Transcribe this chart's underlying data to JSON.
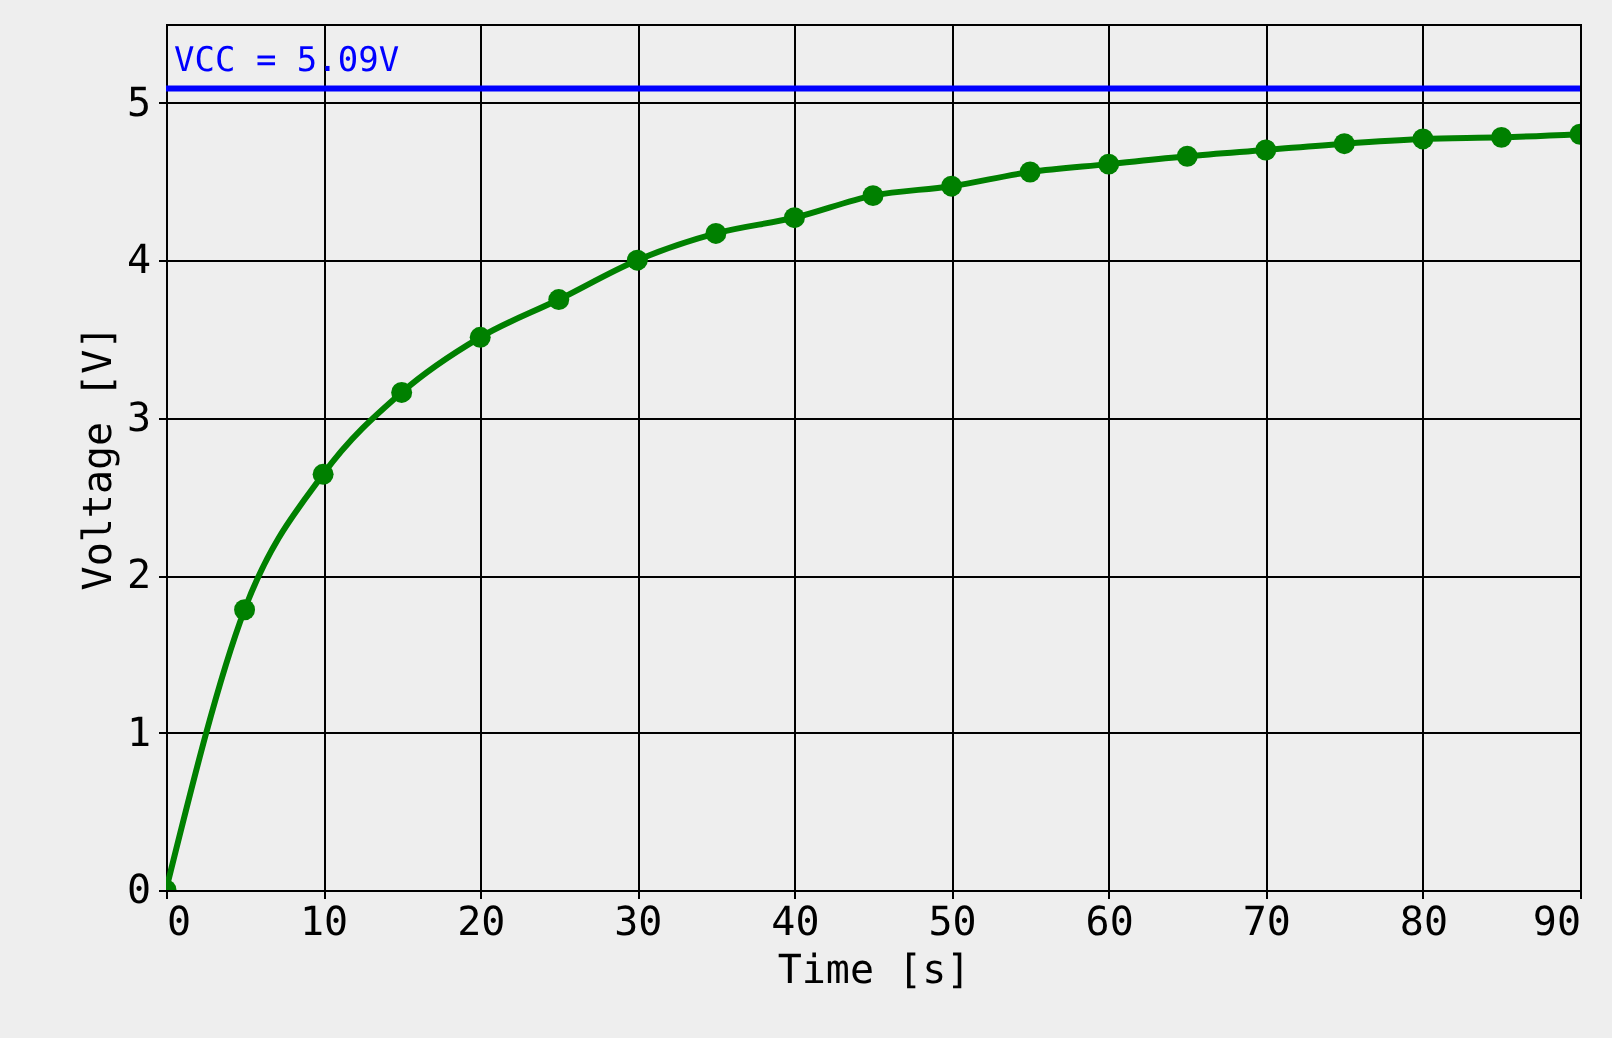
{
  "chart_data": {
    "type": "line",
    "xlabel": "Time [s]",
    "ylabel": "Voltage [V]",
    "x": [
      0,
      5,
      10,
      15,
      20,
      25,
      30,
      35,
      40,
      45,
      50,
      55,
      60,
      65,
      70,
      75,
      80,
      85,
      90
    ],
    "series": [
      {
        "color": "#008000",
        "values": [
          0,
          1.78,
          2.64,
          3.16,
          3.51,
          3.75,
          4.0,
          4.17,
          4.27,
          4.41,
          4.47,
          4.56,
          4.61,
          4.66,
          4.7,
          4.74,
          4.77,
          4.78,
          4.8
        ]
      }
    ],
    "xlim": [
      0,
      90
    ],
    "xticks": [
      0,
      10,
      20,
      30,
      40,
      50,
      60,
      70,
      80,
      90
    ],
    "ylim": [
      0,
      5.5
    ],
    "yticks": [
      0,
      1,
      2,
      3,
      4,
      5
    ],
    "ref_lines": [
      {
        "axis": "y",
        "value": 5.09,
        "label": "VCC = 5.09V",
        "color": "#0000ff"
      }
    ],
    "grid": true,
    "marker": "circle",
    "line_style": "solid"
  }
}
